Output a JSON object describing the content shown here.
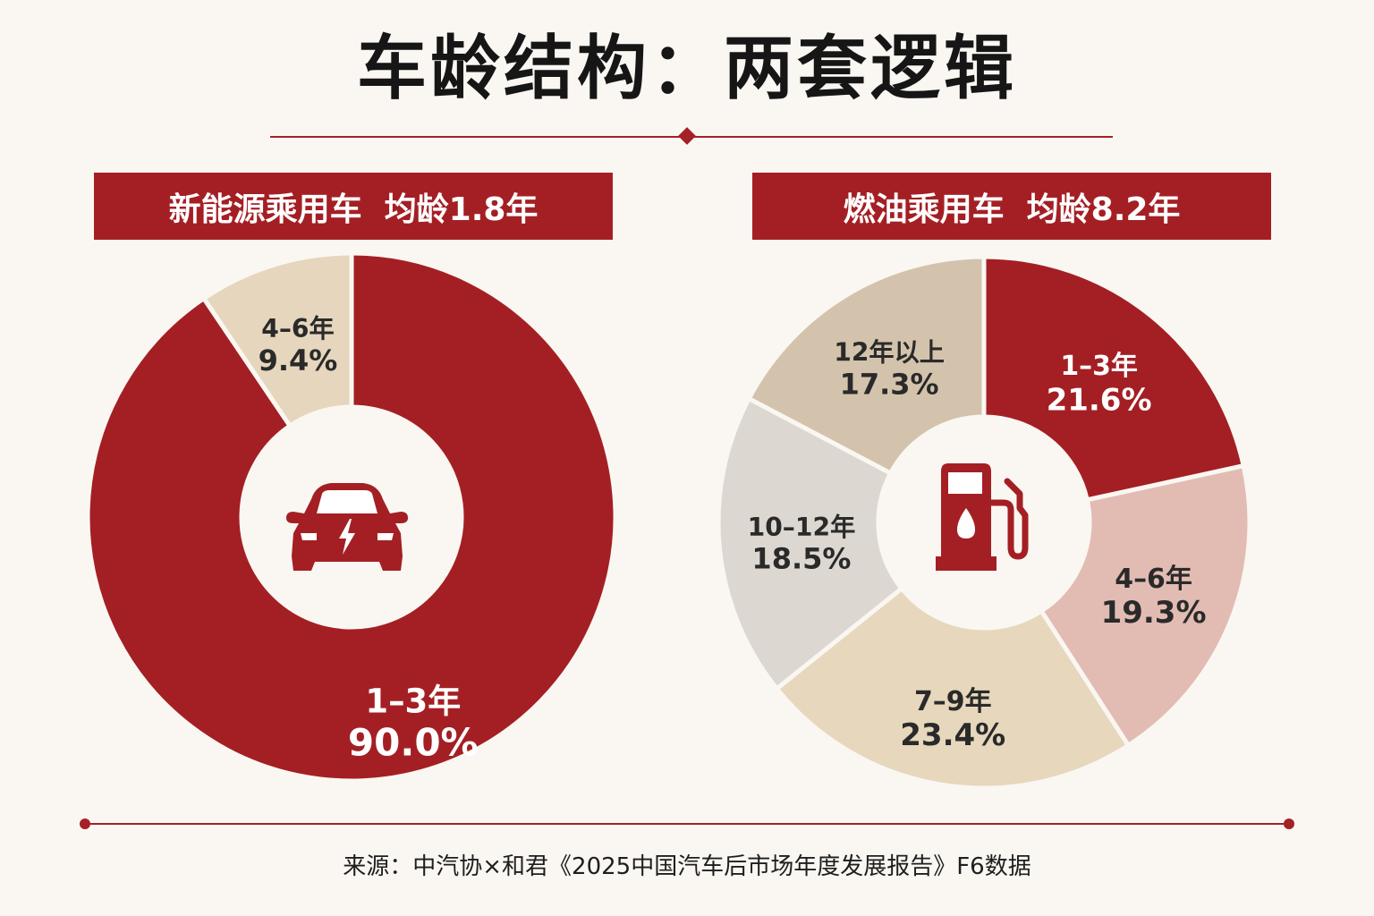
{
  "title": "车龄结构：两套逻辑",
  "colors": {
    "accent": "#a41f24",
    "background": "#faf7f2",
    "slice_light_pink": "#e2bcb3",
    "slice_beige": "#e7d7bc",
    "slice_light_gray": "#dcd8d1",
    "slice_taupe": "#d4c3ac",
    "slice_tan": "#e5d6bd"
  },
  "chart_data": [
    {
      "type": "pie",
      "variant": "donut",
      "title": "新能源乘用车  均龄1.8年",
      "center_icon": "electric-car-icon",
      "categories": [
        "1–3年",
        "4–6年"
      ],
      "values": [
        90.0,
        9.4
      ],
      "value_labels": [
        "90.0%",
        "9.4%"
      ],
      "colors": [
        "#a41f24",
        "#e5d6bd"
      ]
    },
    {
      "type": "pie",
      "variant": "donut",
      "title": "燃油乘用车  均龄8.2年",
      "center_icon": "fuel-pump-icon",
      "categories": [
        "1–3年",
        "4–6年",
        "7–9年",
        "10–12年",
        "12年以上"
      ],
      "values": [
        21.6,
        19.3,
        23.4,
        18.5,
        17.3
      ],
      "value_labels": [
        "21.6%",
        "19.3%",
        "23.4%",
        "18.5%",
        "17.3%"
      ],
      "colors": [
        "#a41f24",
        "#e2bcb3",
        "#e7d7bc",
        "#dcd8d1",
        "#d4c3ac"
      ]
    }
  ],
  "source": "来源：中汽协×和君《2025中国汽车后市场年度发展报告》F6数据"
}
